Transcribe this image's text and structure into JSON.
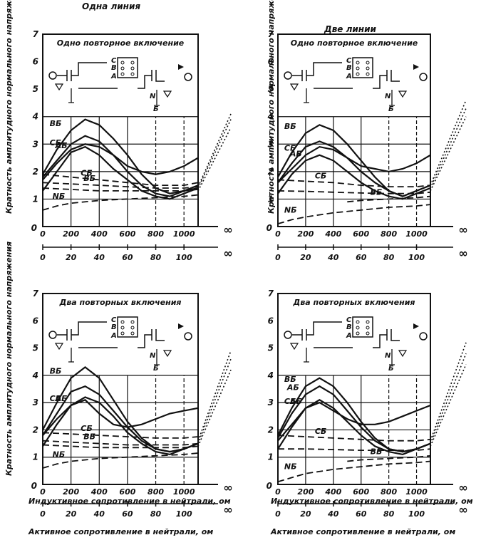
{
  "column_titles": [
    "Одна линия",
    "Две линии"
  ],
  "y_label": "Кратность амплитудного нормального напряжения",
  "x_label_inductive": "Индуктивное сопротивление в нейтрали, ом",
  "x_label_active": "Активное сопротивление в нейтрали, ом",
  "colors": {
    "ink": "#111111",
    "background": "#ffffff"
  },
  "chart_data": [
    {
      "type": "line",
      "title": "Одно повторное включение",
      "xlim": [
        0,
        1100
      ],
      "ylim": [
        0,
        7
      ],
      "y_ticks": [
        "1",
        "2",
        "3",
        "4",
        "5",
        "6",
        "7"
      ],
      "x_ticks": [
        "200",
        "400",
        "600",
        "800",
        "1000"
      ],
      "x2_ticks": [
        "20",
        "40",
        "60",
        "80",
        "100"
      ],
      "axis_origin_label": "0",
      "infinity_label": "∞",
      "schematic_labels": [
        "C",
        "B",
        "A",
        "N",
        "Б"
      ],
      "series": [
        {
          "name": "ВБ",
          "style": "solid",
          "x": [
            0,
            100,
            200,
            300,
            400,
            500,
            600,
            700,
            800,
            900,
            1000,
            1100
          ],
          "y": [
            1.9,
            2.8,
            3.5,
            3.9,
            3.7,
            3.2,
            2.6,
            1.9,
            1.4,
            1.2,
            1.3,
            1.4
          ]
        },
        {
          "style": "solid",
          "x": [
            0,
            100,
            200,
            300,
            400,
            500,
            600,
            700,
            800,
            900,
            1000,
            1100
          ],
          "y": [
            1.8,
            2.4,
            3.0,
            3.3,
            3.1,
            2.6,
            2.0,
            1.5,
            1.2,
            1.1,
            1.3,
            1.5
          ]
        },
        {
          "name": "АБ",
          "style": "solid",
          "x": [
            0,
            100,
            200,
            300,
            400,
            500,
            600,
            700,
            800,
            900,
            1000,
            1100
          ],
          "y": [
            1.3,
            2.0,
            2.7,
            2.9,
            2.6,
            2.1,
            1.7,
            1.3,
            1.1,
            1.0,
            1.2,
            1.4
          ]
        },
        {
          "name": "СБ",
          "style": "solid",
          "x": [
            0,
            100,
            200,
            300,
            400,
            500,
            600,
            700,
            800,
            900,
            1000,
            1100
          ],
          "y": [
            1.7,
            2.3,
            2.8,
            3.0,
            2.9,
            2.6,
            2.2,
            2.0,
            1.9,
            2.0,
            2.2,
            2.5
          ]
        },
        {
          "name": "СБ",
          "style": "dashed",
          "x": [
            0,
            200,
            400,
            600,
            800,
            1000,
            1100
          ],
          "y": [
            1.9,
            1.8,
            1.7,
            1.6,
            1.5,
            1.5,
            1.6
          ]
        },
        {
          "name": "ВБ",
          "style": "dashed",
          "x": [
            0,
            200,
            400,
            600,
            800,
            1000,
            1100
          ],
          "y": [
            1.6,
            1.55,
            1.5,
            1.45,
            1.4,
            1.4,
            1.45
          ]
        },
        {
          "style": "dashed",
          "x": [
            0,
            200,
            400,
            600,
            800,
            1000,
            1100
          ],
          "y": [
            1.4,
            1.35,
            1.3,
            1.3,
            1.3,
            1.3,
            1.35
          ]
        },
        {
          "name": "NБ",
          "style": "dashed",
          "x": [
            0,
            100,
            200,
            400,
            600,
            800,
            1000,
            1100
          ],
          "y": [
            0.6,
            0.75,
            0.85,
            0.95,
            1.0,
            1.05,
            1.1,
            1.15
          ]
        }
      ],
      "asymptotes": [
        [
          1.45,
          4.1
        ],
        [
          1.4,
          3.9
        ],
        [
          1.3,
          3.6
        ]
      ]
    },
    {
      "type": "line",
      "title": "Одно повторное включение",
      "xlim": [
        0,
        1100
      ],
      "ylim": [
        0,
        7
      ],
      "y_ticks": [
        "1",
        "2",
        "3",
        "4",
        "5",
        "6",
        "7"
      ],
      "x_ticks": [
        "200",
        "400",
        "600",
        "800",
        "1000"
      ],
      "x2_ticks": [
        "20",
        "40",
        "60",
        "80",
        "100"
      ],
      "axis_origin_label": "0",
      "infinity_label": "∞",
      "schematic_labels": [
        "C",
        "B",
        "A",
        "N",
        "Б"
      ],
      "series": [
        {
          "name": "ВБ",
          "style": "solid",
          "x": [
            0,
            100,
            200,
            300,
            400,
            500,
            600,
            700,
            800,
            900,
            1000,
            1100
          ],
          "y": [
            1.8,
            2.7,
            3.4,
            3.7,
            3.5,
            3.0,
            2.4,
            1.8,
            1.3,
            1.1,
            1.3,
            1.5
          ]
        },
        {
          "style": "solid",
          "x": [
            0,
            100,
            200,
            300,
            400,
            500,
            600,
            700,
            800,
            900,
            1000,
            1100
          ],
          "y": [
            1.6,
            2.3,
            2.9,
            3.1,
            2.9,
            2.5,
            2.0,
            1.6,
            1.3,
            1.1,
            1.3,
            1.5
          ]
        },
        {
          "name": "АБ",
          "style": "solid",
          "x": [
            0,
            100,
            200,
            300,
            400,
            500,
            600,
            700,
            800,
            900,
            1000,
            1100
          ],
          "y": [
            1.2,
            1.9,
            2.4,
            2.6,
            2.4,
            2.0,
            1.6,
            1.3,
            1.1,
            1.0,
            1.2,
            1.4
          ]
        },
        {
          "name": "СБ",
          "style": "solid",
          "x": [
            0,
            100,
            200,
            300,
            400,
            500,
            600,
            700,
            800,
            900,
            1000,
            1100
          ],
          "y": [
            1.6,
            2.1,
            2.6,
            2.9,
            2.8,
            2.5,
            2.2,
            2.1,
            2.0,
            2.1,
            2.3,
            2.6
          ]
        },
        {
          "name": "СБ",
          "style": "dashed",
          "x": [
            0,
            200,
            400,
            600,
            800,
            1000,
            1100
          ],
          "y": [
            1.7,
            1.65,
            1.6,
            1.5,
            1.45,
            1.45,
            1.5
          ]
        },
        {
          "style": "dashed",
          "x": [
            0,
            200,
            400,
            600,
            800,
            1000,
            1100
          ],
          "y": [
            1.3,
            1.28,
            1.25,
            1.22,
            1.2,
            1.2,
            1.25
          ]
        },
        {
          "name": "NБ",
          "style": "dashed",
          "x": [
            0,
            100,
            200,
            400,
            600,
            800,
            1000,
            1100
          ],
          "y": [
            0.1,
            0.25,
            0.35,
            0.5,
            0.6,
            0.7,
            0.75,
            0.8
          ]
        },
        {
          "name": "ВБ",
          "style": "dashed",
          "x": [
            500,
            600,
            800,
            1000,
            1100
          ],
          "y": [
            0.9,
            0.95,
            1.0,
            1.05,
            1.1
          ]
        }
      ],
      "asymptotes": [
        [
          1.5,
          4.6
        ],
        [
          1.4,
          4.3
        ],
        [
          1.3,
          4.0
        ]
      ]
    },
    {
      "type": "line",
      "title": "Два повторных включения",
      "xlim": [
        0,
        1100
      ],
      "ylim": [
        0,
        7
      ],
      "y_ticks": [
        "1",
        "2",
        "3",
        "4",
        "5",
        "6",
        "7"
      ],
      "x_ticks": [
        "200",
        "400",
        "600",
        "800",
        "1000"
      ],
      "x2_ticks": [
        "20",
        "40",
        "60",
        "80",
        "100"
      ],
      "axis_origin_label": "0",
      "infinity_label": "∞",
      "schematic_labels": [
        "C",
        "B",
        "A",
        "N",
        "Б"
      ],
      "series": [
        {
          "name": "ВБ",
          "style": "solid",
          "x": [
            0,
            100,
            200,
            300,
            400,
            500,
            600,
            700,
            800,
            900,
            1000,
            1100
          ],
          "y": [
            2.0,
            3.0,
            3.9,
            4.3,
            3.9,
            3.1,
            2.3,
            1.7,
            1.3,
            1.2,
            1.3,
            1.5
          ]
        },
        {
          "style": "solid",
          "x": [
            0,
            100,
            200,
            300,
            400,
            500,
            600,
            700,
            800,
            900,
            1000,
            1100
          ],
          "y": [
            1.8,
            2.6,
            3.4,
            3.6,
            3.3,
            2.7,
            2.1,
            1.6,
            1.3,
            1.2,
            1.3,
            1.5
          ]
        },
        {
          "name": "АБ",
          "style": "solid",
          "x": [
            0,
            100,
            200,
            300,
            400,
            500,
            600,
            700,
            800,
            900,
            1000,
            1100
          ],
          "y": [
            1.4,
            2.2,
            2.9,
            3.2,
            3.0,
            2.5,
            1.9,
            1.5,
            1.2,
            1.1,
            1.3,
            1.5
          ]
        },
        {
          "name": "СБ",
          "style": "solid",
          "x": [
            0,
            100,
            200,
            300,
            400,
            500,
            600,
            700,
            800,
            900,
            1000,
            1100
          ],
          "y": [
            1.8,
            2.4,
            2.9,
            3.1,
            2.6,
            2.2,
            2.1,
            2.2,
            2.4,
            2.6,
            2.7,
            2.8
          ]
        },
        {
          "name": "СБ",
          "style": "dashed",
          "x": [
            0,
            200,
            400,
            600,
            800,
            1000,
            1100
          ],
          "y": [
            1.9,
            1.85,
            1.8,
            1.75,
            1.7,
            1.7,
            1.75
          ]
        },
        {
          "name": "ВБ",
          "style": "dashed",
          "x": [
            0,
            200,
            400,
            600,
            800,
            1000,
            1100
          ],
          "y": [
            1.6,
            1.55,
            1.5,
            1.45,
            1.45,
            1.45,
            1.5
          ]
        },
        {
          "style": "dashed",
          "x": [
            0,
            200,
            400,
            600,
            800,
            1000,
            1100
          ],
          "y": [
            1.45,
            1.4,
            1.35,
            1.35,
            1.35,
            1.35,
            1.4
          ]
        },
        {
          "name": "NБ",
          "style": "dashed",
          "x": [
            0,
            100,
            200,
            400,
            600,
            800,
            1000,
            1100
          ],
          "y": [
            0.6,
            0.75,
            0.85,
            0.95,
            1.0,
            1.05,
            1.1,
            1.15
          ]
        }
      ],
      "asymptotes": [
        [
          1.6,
          4.9
        ],
        [
          1.5,
          4.6
        ],
        [
          1.4,
          4.2
        ]
      ]
    },
    {
      "type": "line",
      "title": "Два повторных включения",
      "xlim": [
        0,
        1100
      ],
      "ylim": [
        0,
        7
      ],
      "y_ticks": [
        "1",
        "2",
        "3",
        "4",
        "5",
        "6",
        "7"
      ],
      "x_ticks": [
        "200",
        "400",
        "600",
        "800",
        "1000"
      ],
      "x2_ticks": [
        "20",
        "40",
        "60",
        "80",
        "100"
      ],
      "axis_origin_label": "0",
      "infinity_label": "∞",
      "schematic_labels": [
        "C",
        "B",
        "A",
        "N",
        "Б"
      ],
      "series": [
        {
          "name": "ВБ",
          "style": "solid",
          "x": [
            0,
            100,
            200,
            300,
            400,
            500,
            600,
            700,
            800,
            900,
            1000,
            1100
          ],
          "y": [
            1.8,
            2.8,
            3.6,
            3.9,
            3.6,
            3.0,
            2.3,
            1.7,
            1.3,
            1.2,
            1.3,
            1.5
          ]
        },
        {
          "name": "АБ",
          "style": "solid",
          "x": [
            0,
            100,
            200,
            300,
            400,
            500,
            600,
            700,
            800,
            900,
            1000,
            1100
          ],
          "y": [
            1.7,
            2.6,
            3.3,
            3.6,
            3.3,
            2.7,
            2.1,
            1.6,
            1.3,
            1.2,
            1.3,
            1.5
          ]
        },
        {
          "name": "АБ",
          "style": "solid",
          "x": [
            0,
            100,
            200,
            300,
            400,
            500,
            600,
            700,
            800,
            900,
            1000,
            1100
          ],
          "y": [
            1.3,
            2.1,
            2.8,
            3.1,
            2.8,
            2.3,
            1.8,
            1.4,
            1.2,
            1.1,
            1.3,
            1.5
          ]
        },
        {
          "name": "СБ",
          "style": "solid",
          "x": [
            0,
            100,
            200,
            300,
            400,
            500,
            600,
            700,
            800,
            900,
            1000,
            1100
          ],
          "y": [
            1.6,
            2.2,
            2.8,
            3.0,
            2.7,
            2.4,
            2.2,
            2.2,
            2.3,
            2.5,
            2.7,
            2.9
          ]
        },
        {
          "name": "СБ",
          "style": "dashed",
          "x": [
            0,
            200,
            400,
            600,
            800,
            1000,
            1100
          ],
          "y": [
            1.8,
            1.75,
            1.7,
            1.65,
            1.6,
            1.6,
            1.65
          ]
        },
        {
          "style": "dashed",
          "x": [
            0,
            200,
            400,
            600,
            800,
            1000,
            1100
          ],
          "y": [
            1.3,
            1.3,
            1.28,
            1.25,
            1.25,
            1.25,
            1.3
          ]
        },
        {
          "name": "NБ",
          "style": "dashed",
          "x": [
            0,
            100,
            200,
            400,
            600,
            800,
            1000,
            1100
          ],
          "y": [
            0.1,
            0.25,
            0.4,
            0.55,
            0.65,
            0.75,
            0.8,
            0.85
          ]
        },
        {
          "name": "ВБ",
          "style": "dashed",
          "x": [
            500,
            600,
            800,
            1000,
            1100
          ],
          "y": [
            0.85,
            0.9,
            0.95,
            1.0,
            1.05
          ]
        }
      ],
      "asymptotes": [
        [
          1.6,
          5.2
        ],
        [
          1.5,
          4.8
        ],
        [
          1.4,
          4.4
        ]
      ]
    }
  ]
}
